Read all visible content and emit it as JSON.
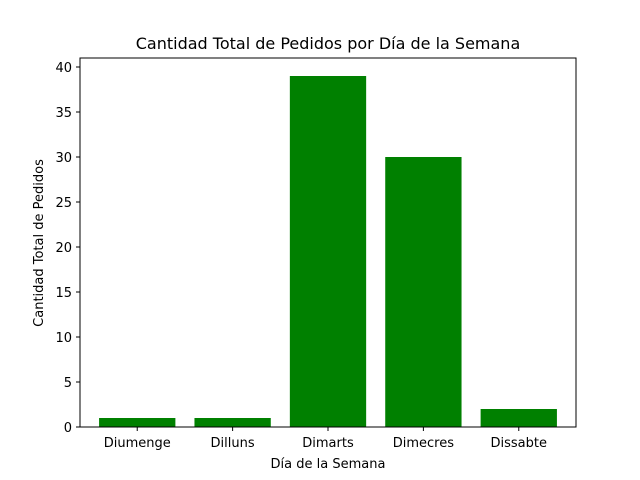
{
  "chart_data": {
    "type": "bar",
    "title": "Cantidad Total de Pedidos por Día de la Semana",
    "xlabel": "Día de la Semana",
    "ylabel": "Cantidad Total de Pedidos",
    "categories": [
      "Diumenge",
      "Dilluns",
      "Dimarts",
      "Dimecres",
      "Dissabte"
    ],
    "values": [
      1,
      1,
      39,
      30,
      2
    ],
    "ylim": [
      0,
      41.0
    ],
    "yticks": [
      0,
      5,
      10,
      15,
      20,
      25,
      30,
      35,
      40
    ],
    "bar_color": "#008000",
    "grid": false,
    "legend": "none"
  }
}
